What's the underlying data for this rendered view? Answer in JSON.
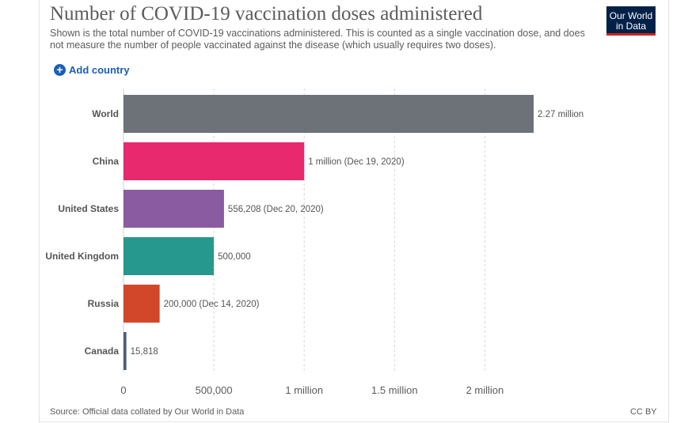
{
  "header": {
    "title": "Number of COVID-19 vaccination doses administered",
    "subtitle": "Shown is the total number of COVID-19 vaccinations administered. This is counted as a single vaccination dose, and does not measure the number of people vaccinated against the disease (which usually requires two doses).",
    "logo_line1": "Our World",
    "logo_line2": "in Data",
    "add_country_label": "Add country"
  },
  "footer": {
    "source": "Source: Official data collated by Our World in Data",
    "license": "CC BY"
  },
  "colors": {
    "accent": "#1a5fb4",
    "logo_bg": "#002147",
    "logo_accent": "#ce261e"
  },
  "chart_data": {
    "type": "bar",
    "orientation": "horizontal",
    "categories": [
      "World",
      "China",
      "United States",
      "United Kingdom",
      "Russia",
      "Canada"
    ],
    "values": [
      2270000,
      1000000,
      556208,
      500000,
      200000,
      15818
    ],
    "data_labels": [
      "2.27 million",
      "1 million (Dec 19, 2020)",
      "556,208 (Dec 20, 2020)",
      "500,000",
      "200,000 (Dec 14, 2020)",
      "15,818"
    ],
    "colors": [
      "#6d7278",
      "#e8296e",
      "#8a5ba0",
      "#26988e",
      "#d2462a",
      "#4a5f78"
    ],
    "x_ticks": [
      0,
      500000,
      1000000,
      1500000,
      2000000
    ],
    "x_tick_labels": [
      "0",
      "500,000",
      "1 million",
      "1.5 million",
      "2 million"
    ],
    "xlim": [
      0,
      2340000
    ],
    "grid": true,
    "title": "Number of COVID-19 vaccination doses administered"
  }
}
